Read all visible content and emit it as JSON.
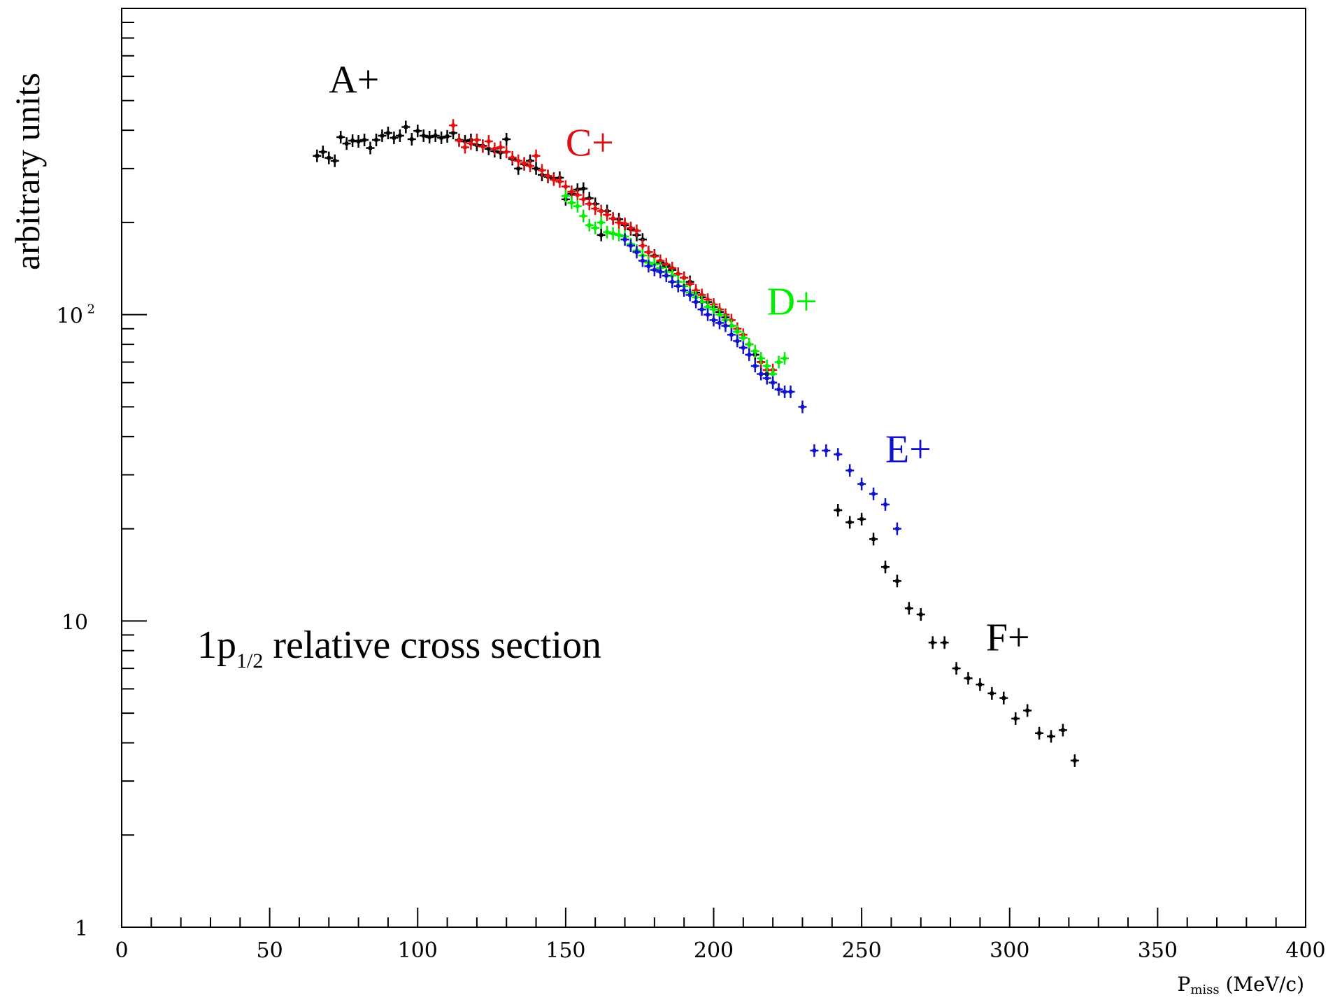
{
  "chart_data": {
    "type": "scatter",
    "title": "",
    "xlabel": {
      "main": "P",
      "sub": "miss",
      "unit": " (MeV/c)"
    },
    "ylabel": "arbitrary units",
    "annotation": {
      "main": "1p",
      "sub": "1/2",
      "rest": " relative cross section"
    },
    "x_ticks": [
      "0",
      "50",
      "100",
      "150",
      "200",
      "250",
      "300",
      "350",
      "400"
    ],
    "y_ticks": [
      {
        "value": 1,
        "label": "1"
      },
      {
        "value": 10,
        "label": "10"
      },
      {
        "value": 100,
        "label": "10",
        "sup": "2"
      }
    ],
    "xlim": [
      0,
      400
    ],
    "ylim": [
      1,
      1000
    ],
    "yscale": "log",
    "grid": false,
    "series": [
      {
        "name": "A+",
        "color": "#000000",
        "points": [
          [
            66,
            330
          ],
          [
            68,
            340
          ],
          [
            70,
            325
          ],
          [
            72,
            318
          ],
          [
            74,
            380
          ],
          [
            76,
            362
          ],
          [
            78,
            370
          ],
          [
            80,
            368
          ],
          [
            82,
            372
          ],
          [
            84,
            350
          ],
          [
            86,
            372
          ],
          [
            88,
            384
          ],
          [
            90,
            392
          ],
          [
            92,
            378
          ],
          [
            94,
            384
          ],
          [
            96,
            410
          ],
          [
            98,
            374
          ],
          [
            100,
            398
          ],
          [
            102,
            384
          ],
          [
            104,
            380
          ],
          [
            106,
            384
          ],
          [
            108,
            378
          ],
          [
            110,
            382
          ],
          [
            112,
            392
          ],
          [
            114,
            372
          ],
          [
            116,
            368
          ],
          [
            118,
            372
          ],
          [
            120,
            358
          ],
          [
            122,
            356
          ],
          [
            124,
            348
          ],
          [
            126,
            342
          ],
          [
            128,
            338
          ],
          [
            130,
            374
          ],
          [
            132,
            322
          ],
          [
            134,
            300
          ],
          [
            136,
            310
          ],
          [
            138,
            318
          ],
          [
            140,
            300
          ],
          [
            142,
            286
          ],
          [
            144,
            282
          ],
          [
            146,
            278
          ],
          [
            148,
            280
          ],
          [
            150,
            238
          ],
          [
            152,
            248
          ],
          [
            154,
            256
          ],
          [
            156,
            258
          ],
          [
            158,
            240
          ],
          [
            160,
            230
          ],
          [
            162,
            182
          ],
          [
            164,
            218
          ],
          [
            166,
            206
          ],
          [
            168,
            205
          ],
          [
            170,
            196
          ],
          [
            172,
            190
          ],
          [
            174,
            182
          ],
          [
            176,
            176
          ],
          [
            178,
            160
          ],
          [
            180,
            156
          ],
          [
            182,
            148
          ],
          [
            184,
            144
          ],
          [
            186,
            140
          ],
          [
            188,
            136
          ],
          [
            190,
            132
          ],
          [
            192,
            128
          ],
          [
            194,
            118
          ],
          [
            196,
            114
          ],
          [
            198,
            110
          ],
          [
            200,
            106
          ],
          [
            202,
            102
          ],
          [
            204,
            98
          ],
          [
            206,
            92
          ],
          [
            208,
            88
          ],
          [
            210,
            84
          ],
          [
            212,
            80
          ],
          [
            214,
            74
          ],
          [
            216,
            70
          ],
          [
            218,
            64
          ],
          [
            220,
            60
          ],
          [
            242,
            23
          ],
          [
            246,
            21
          ],
          [
            250,
            21.5
          ],
          [
            254,
            18.5
          ],
          [
            258,
            15
          ],
          [
            262,
            13.5
          ],
          [
            266,
            11
          ],
          [
            270,
            10.5
          ],
          [
            274,
            8.5
          ],
          [
            278,
            8.5
          ],
          [
            282,
            7
          ],
          [
            286,
            6.5
          ],
          [
            290,
            6.2
          ],
          [
            294,
            5.8
          ],
          [
            298,
            5.6
          ],
          [
            302,
            4.8
          ],
          [
            306,
            5.1
          ],
          [
            310,
            4.3
          ],
          [
            314,
            4.2
          ],
          [
            318,
            4.4
          ],
          [
            322,
            3.5
          ]
        ]
      },
      {
        "name": "C+",
        "color": "#dd1111",
        "points": [
          [
            112,
            415
          ],
          [
            114,
            370
          ],
          [
            116,
            352
          ],
          [
            118,
            362
          ],
          [
            120,
            372
          ],
          [
            122,
            354
          ],
          [
            124,
            368
          ],
          [
            126,
            348
          ],
          [
            128,
            352
          ],
          [
            130,
            340
          ],
          [
            132,
            326
          ],
          [
            134,
            318
          ],
          [
            136,
            312
          ],
          [
            138,
            306
          ],
          [
            140,
            330
          ],
          [
            142,
            296
          ],
          [
            144,
            284
          ],
          [
            146,
            276
          ],
          [
            148,
            272
          ],
          [
            150,
            262
          ],
          [
            152,
            252
          ],
          [
            154,
            246
          ],
          [
            156,
            238
          ],
          [
            158,
            230
          ],
          [
            160,
            222
          ],
          [
            162,
            218
          ],
          [
            164,
            212
          ],
          [
            166,
            206
          ],
          [
            168,
            200
          ],
          [
            170,
            198
          ],
          [
            172,
            192
          ],
          [
            174,
            188
          ],
          [
            176,
            168
          ],
          [
            178,
            160
          ],
          [
            180,
            155
          ],
          [
            182,
            150
          ],
          [
            184,
            146
          ],
          [
            186,
            142
          ],
          [
            188,
            136
          ],
          [
            190,
            132
          ],
          [
            192,
            126
          ],
          [
            194,
            120
          ],
          [
            196,
            116
          ],
          [
            198,
            112
          ],
          [
            200,
            108
          ],
          [
            202,
            104
          ],
          [
            204,
            100
          ],
          [
            206,
            96
          ],
          [
            208,
            90
          ],
          [
            210,
            86
          ],
          [
            212,
            80
          ],
          [
            214,
            76
          ],
          [
            216,
            70
          ],
          [
            218,
            66
          ],
          [
            220,
            66
          ]
        ]
      },
      {
        "name": "D+",
        "color": "#00ee00",
        "points": [
          [
            150,
            244
          ],
          [
            152,
            232
          ],
          [
            154,
            226
          ],
          [
            156,
            210
          ],
          [
            158,
            196
          ],
          [
            160,
            192
          ],
          [
            162,
            200
          ],
          [
            164,
            186
          ],
          [
            166,
            184
          ],
          [
            168,
            182
          ],
          [
            170,
            180
          ],
          [
            172,
            170
          ],
          [
            174,
            162
          ],
          [
            176,
            156
          ],
          [
            178,
            148
          ],
          [
            180,
            146
          ],
          [
            182,
            142
          ],
          [
            184,
            138
          ],
          [
            186,
            134
          ],
          [
            188,
            128
          ],
          [
            190,
            124
          ],
          [
            192,
            118
          ],
          [
            194,
            114
          ],
          [
            196,
            110
          ],
          [
            198,
            106
          ],
          [
            200,
            104
          ],
          [
            202,
            100
          ],
          [
            204,
            96
          ],
          [
            206,
            92
          ],
          [
            208,
            88
          ],
          [
            210,
            84
          ],
          [
            212,
            80
          ],
          [
            214,
            76
          ],
          [
            216,
            72
          ],
          [
            218,
            68
          ],
          [
            220,
            64
          ],
          [
            222,
            70
          ],
          [
            224,
            72
          ]
        ]
      },
      {
        "name": "E+",
        "color": "#1111cc",
        "points": [
          [
            170,
            176
          ],
          [
            172,
            168
          ],
          [
            174,
            160
          ],
          [
            176,
            150
          ],
          [
            178,
            144
          ],
          [
            180,
            140
          ],
          [
            182,
            138
          ],
          [
            184,
            134
          ],
          [
            186,
            128
          ],
          [
            188,
            124
          ],
          [
            190,
            120
          ],
          [
            192,
            116
          ],
          [
            194,
            110
          ],
          [
            196,
            104
          ],
          [
            198,
            100
          ],
          [
            200,
            96
          ],
          [
            202,
            94
          ],
          [
            204,
            92
          ],
          [
            206,
            86
          ],
          [
            208,
            82
          ],
          [
            210,
            78
          ],
          [
            212,
            74
          ],
          [
            214,
            68
          ],
          [
            216,
            64
          ],
          [
            218,
            62
          ],
          [
            220,
            60
          ],
          [
            222,
            57
          ],
          [
            224,
            56
          ],
          [
            226,
            56
          ],
          [
            230,
            50
          ],
          [
            234,
            36
          ],
          [
            238,
            36
          ],
          [
            242,
            35
          ],
          [
            246,
            31
          ],
          [
            250,
            28
          ],
          [
            254,
            26
          ],
          [
            258,
            24
          ],
          [
            262,
            20
          ]
        ]
      },
      {
        "name": "F+",
        "color": "#000000",
        "points": []
      }
    ],
    "series_labels": [
      {
        "text": "A+",
        "color": "#000000",
        "x": 70,
        "y": 530
      },
      {
        "text": "C+",
        "color": "#dd1111",
        "x": 150,
        "y": 330
      },
      {
        "text": "D+",
        "color": "#00ee00",
        "x": 218,
        "y": 100
      },
      {
        "text": "E+",
        "color": "#1111cc",
        "x": 258,
        "y": 33
      },
      {
        "text": "F+",
        "color": "#000000",
        "x": 292,
        "y": 8
      }
    ]
  }
}
